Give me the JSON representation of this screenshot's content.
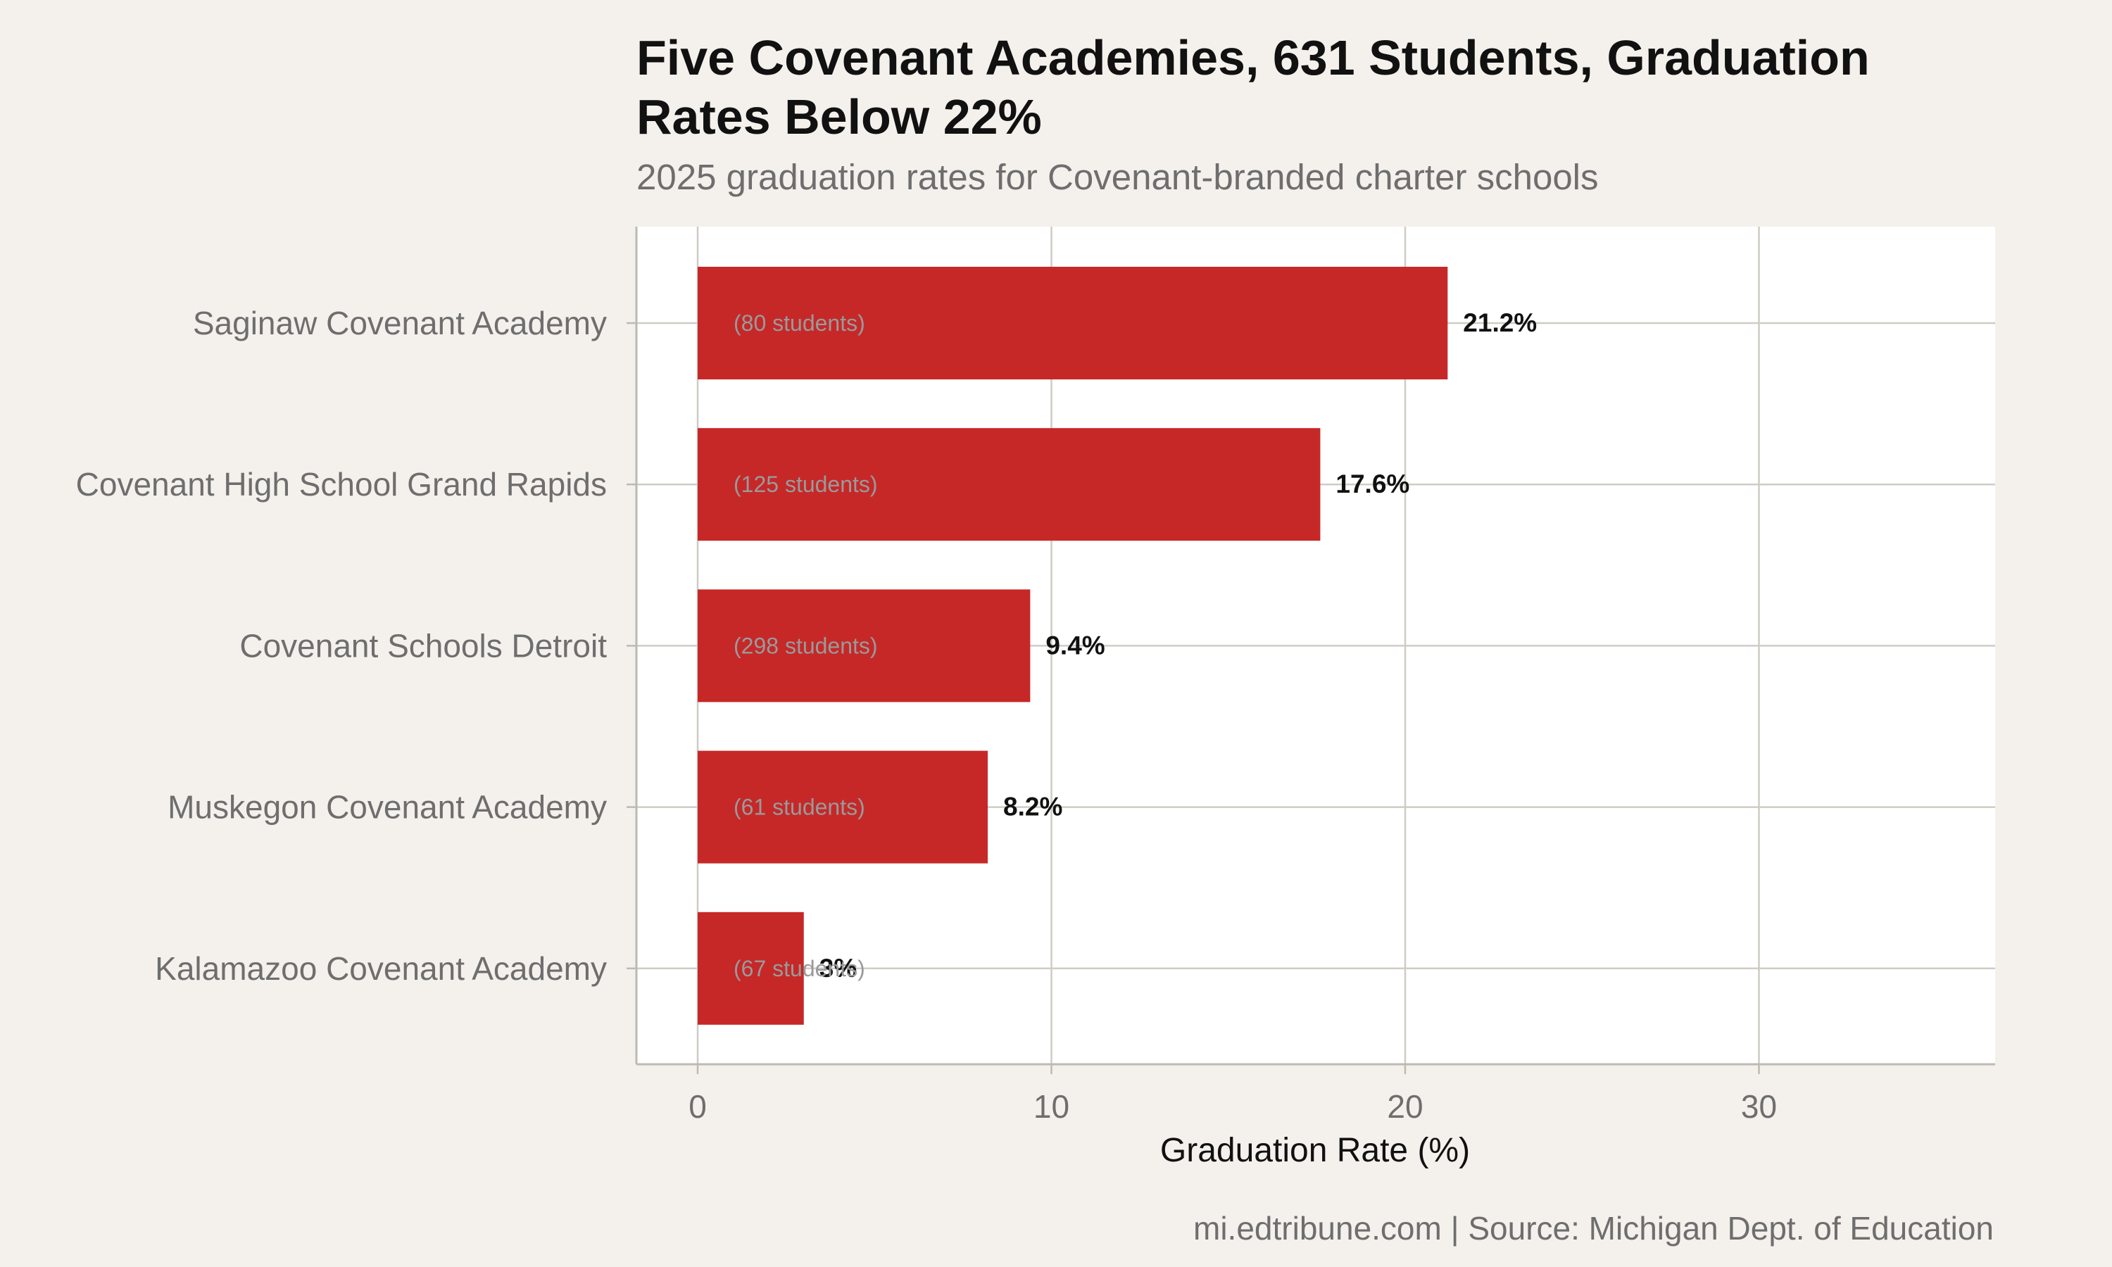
{
  "chart_data": {
    "type": "bar",
    "orientation": "horizontal",
    "title": "Five Covenant Academies, 631 Students, Graduation Rates Below 22%",
    "subtitle": "2025 graduation rates for Covenant-branded charter schools",
    "xlabel": "Graduation Rate (%)",
    "ylabel": "",
    "categories": [
      "Saginaw Covenant Academy",
      "Covenant High School Grand Rapids",
      "Covenant Schools Detroit",
      "Muskegon Covenant Academy",
      "Kalamazoo Covenant Academy"
    ],
    "values": [
      21.2,
      17.6,
      9.4,
      8.2,
      3
    ],
    "value_labels": [
      "21.2%",
      "17.6%",
      "9.4%",
      "8.2%",
      "3%"
    ],
    "student_labels": [
      "(80 students)",
      "(125 students)",
      "(298 students)",
      "(61 students)",
      "(67 students)"
    ],
    "xticks": [
      0,
      10,
      20,
      30
    ],
    "xlim": [
      -1.7,
      36
    ],
    "grid": true,
    "legend": "none",
    "bar_color": "#c62828",
    "caption": "mi.edtribune.com | Source: Michigan Dept. of Education"
  }
}
